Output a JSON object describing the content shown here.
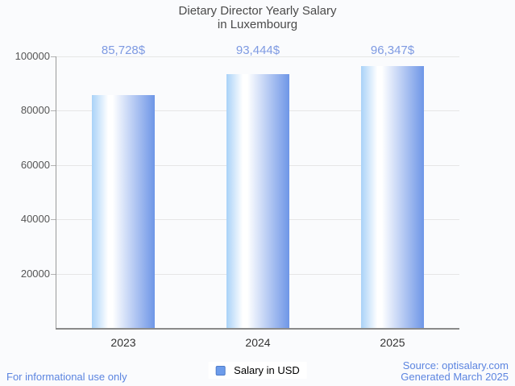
{
  "chart": {
    "title_line1": "Dietary Director Yearly Salary",
    "title_line2": "in Luxembourg",
    "legend_label": "Salary in USD"
  },
  "footer": {
    "disclaimer": "For informational use only",
    "source": "Source: optisalary.com",
    "generated": "Generated March 2025"
  },
  "chart_data": {
    "type": "bar",
    "title": "Dietary Director Yearly Salary in Luxembourg",
    "categories": [
      "2023",
      "2024",
      "2025"
    ],
    "series": [
      {
        "name": "Salary in USD",
        "values": [
          85728,
          93444,
          96347
        ]
      }
    ],
    "value_labels": [
      "85,728$",
      "93,444$",
      "96,347$"
    ],
    "xlabel": "",
    "ylabel": "",
    "ylim": [
      0,
      100000
    ],
    "ytick_step": 20000,
    "ytick_labels": [
      "20000",
      "40000",
      "60000",
      "80000",
      "100000"
    ],
    "grid": true,
    "legend_position": "bottom",
    "colors": {
      "background": "#fafbfd",
      "title": "#4a4a4a",
      "bar_gradient_left": "#a9d2f8",
      "bar_gradient_mid": "#ffffff",
      "bar_gradient_right": "#6e96e7",
      "value_label": "#7e9ae2",
      "footer_link": "#5c85e0",
      "legend_swatch_fill": "#6d9ceb",
      "legend_swatch_border": "#4e7cc9",
      "axis_line": "#8a8a8a",
      "grid_line": "#e6e6e6"
    }
  }
}
